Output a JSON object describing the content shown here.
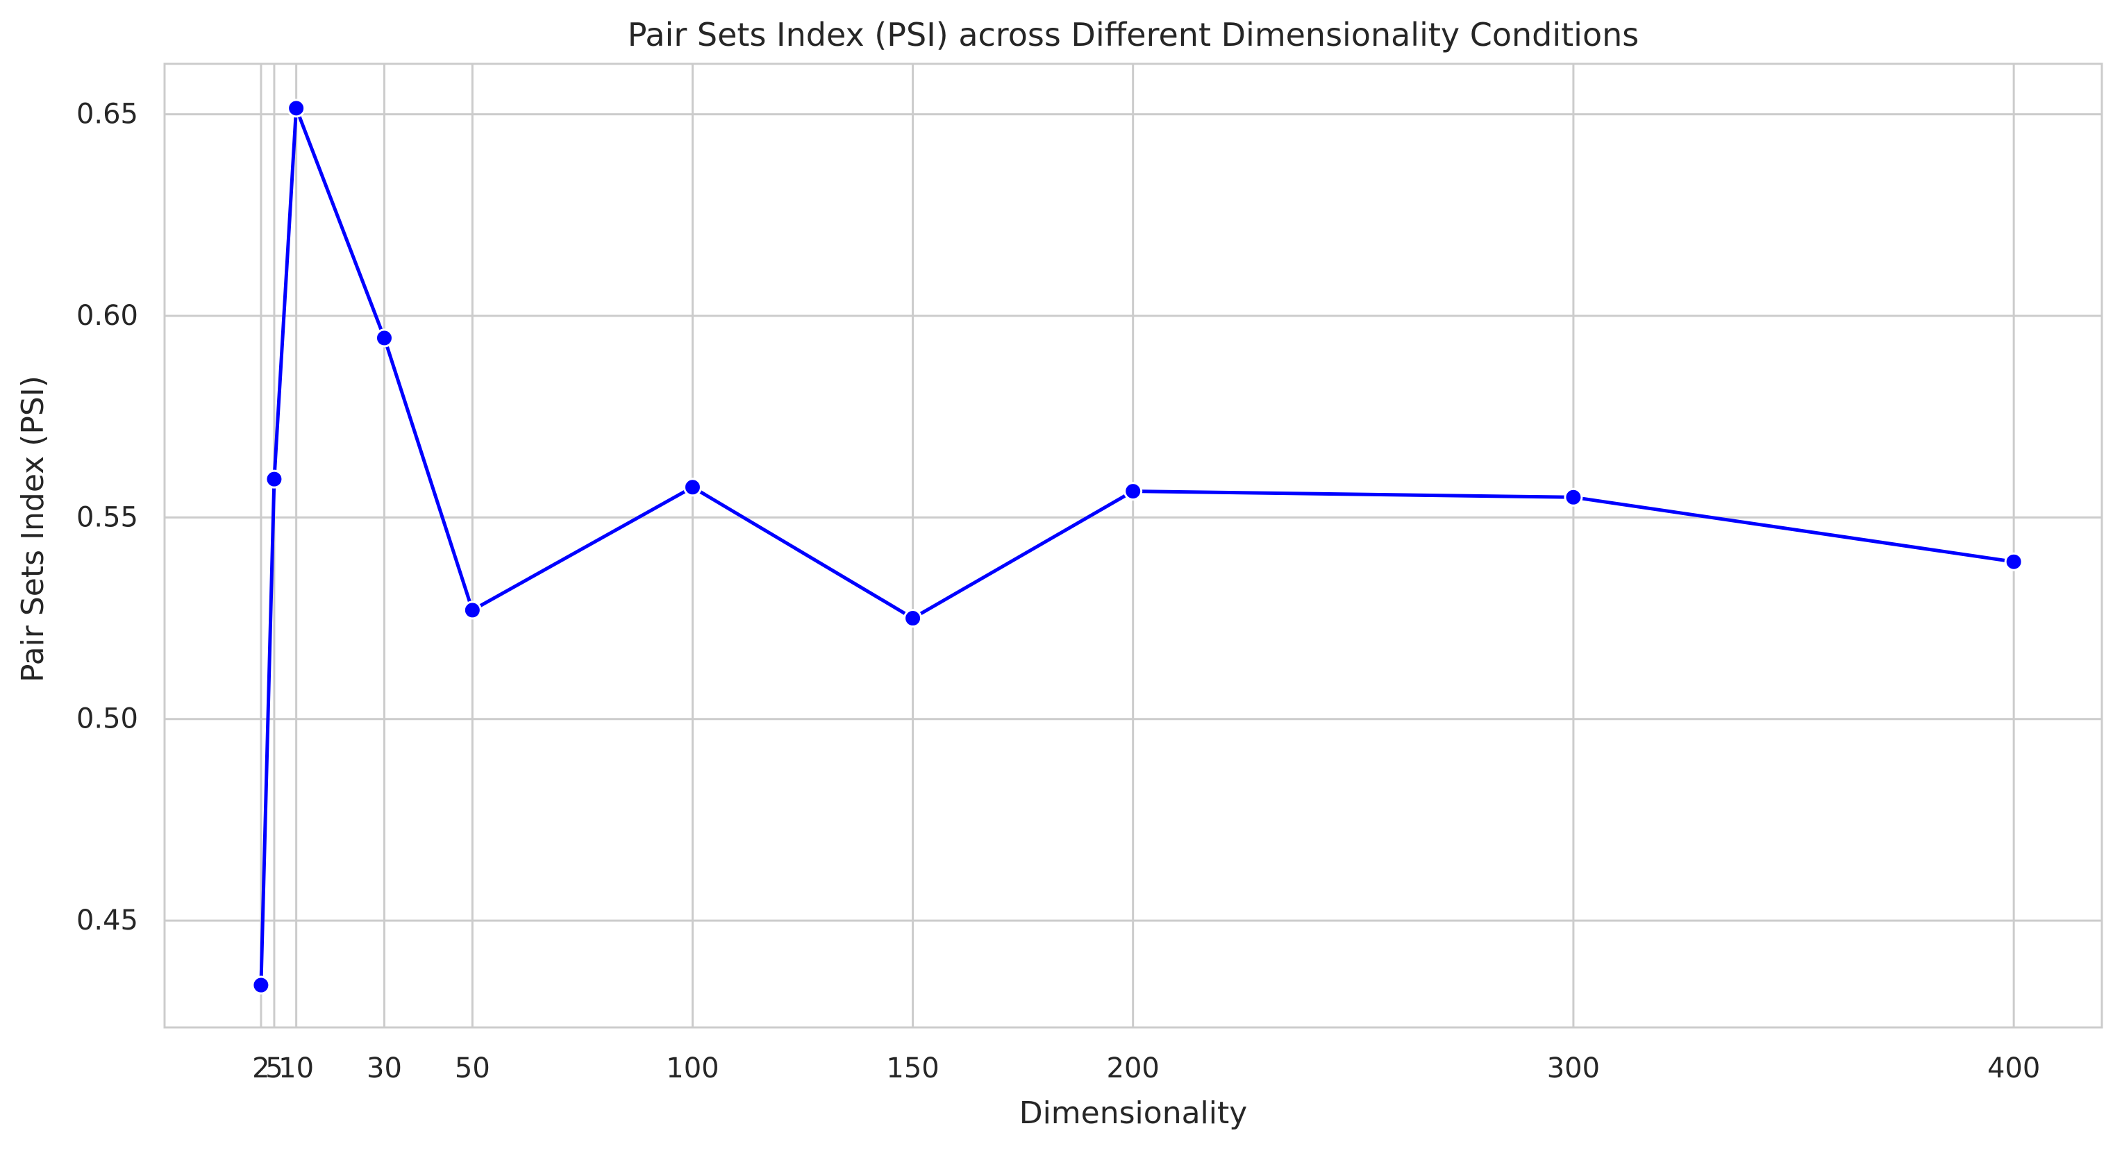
{
  "chart_data": {
    "type": "line",
    "title": "Pair Sets Index (PSI) across Different Dimensionality Conditions",
    "xlabel": "Dimensionality",
    "ylabel": "Pair Sets Index (PSI)",
    "x": [
      2,
      5,
      10,
      30,
      50,
      100,
      150,
      200,
      300,
      400
    ],
    "x_tick_labels": [
      "2",
      "5",
      "10",
      "30",
      "50",
      "100",
      "150",
      "200",
      "300",
      "400"
    ],
    "series": [
      {
        "values": [
          0.434,
          0.5595,
          0.6515,
          0.5945,
          0.527,
          0.5575,
          0.525,
          0.5565,
          0.555,
          0.539
        ]
      }
    ],
    "y_ticks": [
      0.45,
      0.5,
      0.55,
      0.6,
      0.65
    ],
    "y_tick_labels": [
      "0.45",
      "0.50",
      "0.55",
      "0.60",
      "0.65"
    ],
    "xlim": [
      -19.9,
      420
    ],
    "ylim": [
      0.4235,
      0.6625
    ],
    "grid": true,
    "line_color": "#0000ff",
    "marker_color": "#0000ff",
    "marker_edge_color": "#ffffff",
    "grid_color": "#cccccc",
    "spine_color": "#cccccc"
  }
}
